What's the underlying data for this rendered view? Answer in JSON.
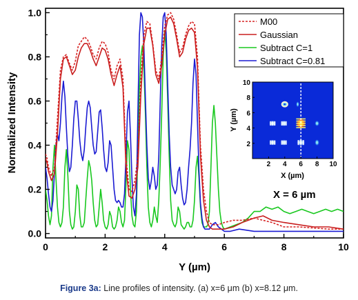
{
  "chart_data": [
    {
      "type": "line",
      "title": "",
      "xlabel": "Y (µm)",
      "ylabel": "Normalized Intensity",
      "xlim": [
        0,
        10
      ],
      "ylim": [
        -0.02,
        1.02
      ],
      "xticks": [
        "0",
        "2",
        "4",
        "6",
        "8",
        "10"
      ],
      "yticks": [
        "0.0",
        "0.2",
        "0.4",
        "0.6",
        "0.8",
        "1.0"
      ],
      "grid": false,
      "legend_position": "top-right",
      "annotation": "X = 6 µm",
      "series": [
        {
          "name": "M00",
          "color": "#d62020",
          "dash": "dashed",
          "x": [
            0,
            0.05,
            0.1,
            0.2,
            0.3,
            0.4,
            0.5,
            0.6,
            0.7,
            0.8,
            0.9,
            1.0,
            1.1,
            1.2,
            1.3,
            1.4,
            1.5,
            1.6,
            1.7,
            1.8,
            1.9,
            2.0,
            2.1,
            2.2,
            2.3,
            2.4,
            2.5,
            2.6,
            2.7,
            2.8,
            2.9,
            3.0,
            3.1,
            3.2,
            3.3,
            3.4,
            3.5,
            3.6,
            3.7,
            3.8,
            3.9,
            4.0,
            4.1,
            4.2,
            4.3,
            4.4,
            4.5,
            4.6,
            4.7,
            4.8,
            4.9,
            5.0,
            5.1,
            5.2,
            5.3,
            5.4,
            5.5,
            5.6,
            5.7,
            5.8,
            6.0,
            6.3,
            6.6,
            7.0,
            7.3,
            7.6,
            8.0,
            8.5,
            9.0,
            9.5,
            10.0
          ],
          "y": [
            0.36,
            0.34,
            0.3,
            0.26,
            0.3,
            0.52,
            0.74,
            0.8,
            0.81,
            0.77,
            0.74,
            0.78,
            0.85,
            0.87,
            0.89,
            0.88,
            0.85,
            0.81,
            0.79,
            0.84,
            0.87,
            0.86,
            0.82,
            0.74,
            0.7,
            0.76,
            0.79,
            0.7,
            0.35,
            0.2,
            0.19,
            0.24,
            0.35,
            0.7,
            0.9,
            0.96,
            0.95,
            0.86,
            0.74,
            0.7,
            0.8,
            0.94,
            0.99,
            1.0,
            0.97,
            0.9,
            0.82,
            0.84,
            0.9,
            0.94,
            0.96,
            0.95,
            0.8,
            0.4,
            0.2,
            0.1,
            0.05,
            0.04,
            0.04,
            0.04,
            0.05,
            0.06,
            0.06,
            0.07,
            0.06,
            0.05,
            0.03,
            0.03,
            0.025,
            0.02,
            0.02
          ]
        },
        {
          "name": "Gaussian",
          "color": "#c81e1e",
          "dash": "solid",
          "x": [
            0,
            0.05,
            0.1,
            0.2,
            0.3,
            0.4,
            0.5,
            0.6,
            0.7,
            0.8,
            0.9,
            1.0,
            1.1,
            1.2,
            1.3,
            1.4,
            1.5,
            1.6,
            1.7,
            1.8,
            1.9,
            2.0,
            2.1,
            2.2,
            2.3,
            2.4,
            2.5,
            2.6,
            2.7,
            2.8,
            2.9,
            3.0,
            3.1,
            3.2,
            3.3,
            3.4,
            3.5,
            3.6,
            3.7,
            3.8,
            3.9,
            4.0,
            4.1,
            4.2,
            4.3,
            4.4,
            4.5,
            4.6,
            4.7,
            4.8,
            4.9,
            5.0,
            5.1,
            5.2,
            5.3,
            5.4,
            5.5,
            5.6,
            5.7,
            6.0,
            6.3,
            6.6,
            7.0,
            7.3,
            7.6,
            8.0,
            8.5,
            9.0,
            9.5,
            10.0
          ],
          "y": [
            0.34,
            0.32,
            0.28,
            0.24,
            0.27,
            0.45,
            0.7,
            0.79,
            0.8,
            0.76,
            0.72,
            0.74,
            0.8,
            0.84,
            0.86,
            0.86,
            0.83,
            0.79,
            0.76,
            0.8,
            0.84,
            0.83,
            0.79,
            0.72,
            0.67,
            0.72,
            0.76,
            0.66,
            0.3,
            0.17,
            0.16,
            0.2,
            0.3,
            0.63,
            0.86,
            0.93,
            0.93,
            0.85,
            0.72,
            0.68,
            0.76,
            0.9,
            0.97,
            0.98,
            0.95,
            0.88,
            0.8,
            0.82,
            0.88,
            0.92,
            0.93,
            0.91,
            0.75,
            0.35,
            0.15,
            0.06,
            0.03,
            0.02,
            0.02,
            0.02,
            0.03,
            0.05,
            0.07,
            0.08,
            0.06,
            0.05,
            0.04,
            0.03,
            0.03,
            0.02
          ]
        },
        {
          "name": "Subtract C=1",
          "color": "#18c81e",
          "dash": "solid",
          "x": [
            0,
            0.05,
            0.1,
            0.15,
            0.2,
            0.25,
            0.3,
            0.35,
            0.4,
            0.45,
            0.5,
            0.55,
            0.6,
            0.65,
            0.7,
            0.75,
            0.8,
            0.85,
            0.9,
            0.95,
            1.0,
            1.05,
            1.1,
            1.15,
            1.2,
            1.25,
            1.3,
            1.35,
            1.4,
            1.45,
            1.5,
            1.55,
            1.6,
            1.65,
            1.7,
            1.75,
            1.8,
            1.85,
            1.9,
            1.95,
            2.0,
            2.05,
            2.1,
            2.15,
            2.2,
            2.25,
            2.3,
            2.35,
            2.4,
            2.45,
            2.5,
            2.55,
            2.6,
            2.65,
            2.7,
            2.75,
            2.8,
            2.85,
            2.9,
            2.95,
            3.0,
            3.05,
            3.1,
            3.15,
            3.2,
            3.25,
            3.3,
            3.35,
            3.4,
            3.45,
            3.5,
            3.55,
            3.6,
            3.65,
            3.7,
            3.75,
            3.8,
            3.85,
            3.9,
            3.95,
            4.0,
            4.05,
            4.1,
            4.15,
            4.2,
            4.25,
            4.3,
            4.35,
            4.4,
            4.45,
            4.5,
            4.55,
            4.6,
            4.65,
            4.7,
            4.75,
            4.8,
            4.85,
            4.9,
            4.95,
            5.0,
            5.05,
            5.1,
            5.15,
            5.2,
            5.25,
            5.3,
            5.35,
            5.4,
            5.45,
            5.5,
            5.55,
            5.6,
            5.65,
            5.7,
            5.75,
            5.8,
            5.85,
            5.9,
            5.95,
            6.0,
            6.2,
            6.4,
            6.6,
            6.8,
            7.0,
            7.2,
            7.4,
            7.6,
            7.8,
            8.0,
            8.2,
            8.4,
            8.6,
            8.8,
            9.0,
            9.2,
            9.4,
            9.6,
            9.8,
            10.0
          ],
          "y": [
            0.2,
            0.15,
            0.08,
            0.04,
            0.08,
            0.3,
            0.4,
            0.25,
            0.12,
            0.05,
            0.03,
            0.05,
            0.12,
            0.3,
            0.38,
            0.26,
            0.1,
            0.04,
            0.02,
            0.03,
            0.1,
            0.22,
            0.2,
            0.08,
            0.03,
            0.03,
            0.05,
            0.15,
            0.25,
            0.33,
            0.3,
            0.24,
            0.14,
            0.06,
            0.03,
            0.04,
            0.12,
            0.2,
            0.14,
            0.06,
            0.03,
            0.02,
            0.04,
            0.1,
            0.08,
            0.03,
            0.02,
            0.03,
            0.06,
            0.12,
            0.1,
            0.05,
            0.03,
            0.06,
            0.22,
            0.42,
            0.38,
            0.2,
            0.08,
            0.04,
            0.03,
            0.1,
            0.4,
            0.65,
            0.8,
            0.85,
            0.75,
            0.55,
            0.3,
            0.12,
            0.05,
            0.03,
            0.06,
            0.12,
            0.08,
            0.05,
            0.15,
            0.32,
            0.55,
            0.8,
            0.92,
            0.82,
            0.6,
            0.35,
            0.15,
            0.06,
            0.04,
            0.03,
            0.05,
            0.12,
            0.1,
            0.04,
            0.03,
            0.02,
            0.03,
            0.05,
            0.05,
            0.03,
            0.03,
            0.06,
            0.15,
            0.3,
            0.35,
            0.25,
            0.12,
            0.05,
            0.03,
            0.03,
            0.03,
            0.04,
            0.1,
            0.3,
            0.5,
            0.58,
            0.5,
            0.35,
            0.2,
            0.1,
            0.05,
            0.03,
            0.02,
            0.03,
            0.04,
            0.05,
            0.07,
            0.1,
            0.1,
            0.12,
            0.11,
            0.12,
            0.1,
            0.09,
            0.1,
            0.11,
            0.1,
            0.09,
            0.1,
            0.11,
            0.1,
            0.11,
            0.1
          ]
        },
        {
          "name": "Subtract C=0.81",
          "color": "#1a1ad2",
          "dash": "solid",
          "x": [
            0,
            0.05,
            0.1,
            0.15,
            0.2,
            0.25,
            0.3,
            0.35,
            0.4,
            0.45,
            0.5,
            0.55,
            0.6,
            0.65,
            0.7,
            0.75,
            0.8,
            0.85,
            0.9,
            0.95,
            1.0,
            1.05,
            1.1,
            1.15,
            1.2,
            1.25,
            1.3,
            1.35,
            1.4,
            1.45,
            1.5,
            1.55,
            1.6,
            1.65,
            1.7,
            1.75,
            1.8,
            1.85,
            1.9,
            1.95,
            2.0,
            2.05,
            2.1,
            2.15,
            2.2,
            2.25,
            2.3,
            2.35,
            2.4,
            2.45,
            2.5,
            2.55,
            2.6,
            2.65,
            2.7,
            2.75,
            2.8,
            2.85,
            2.9,
            2.95,
            3.0,
            3.05,
            3.1,
            3.15,
            3.2,
            3.25,
            3.3,
            3.35,
            3.4,
            3.45,
            3.5,
            3.55,
            3.6,
            3.65,
            3.7,
            3.75,
            3.8,
            3.85,
            3.9,
            3.95,
            4.0,
            4.05,
            4.1,
            4.15,
            4.2,
            4.25,
            4.3,
            4.35,
            4.4,
            4.45,
            4.5,
            4.55,
            4.6,
            4.65,
            4.7,
            4.75,
            4.8,
            4.85,
            4.9,
            4.95,
            5.0,
            5.05,
            5.1,
            5.15,
            5.2,
            5.25,
            5.3,
            5.35,
            5.4,
            5.5,
            5.6,
            5.7,
            5.8,
            6.0,
            6.2,
            6.5,
            7.0,
            7.5,
            8.0,
            8.5,
            9.0,
            9.5,
            10.0
          ],
          "y": [
            0.3,
            0.25,
            0.18,
            0.12,
            0.1,
            0.15,
            0.28,
            0.4,
            0.45,
            0.42,
            0.5,
            0.62,
            0.69,
            0.62,
            0.48,
            0.35,
            0.28,
            0.3,
            0.4,
            0.52,
            0.6,
            0.6,
            0.52,
            0.42,
            0.36,
            0.33,
            0.38,
            0.48,
            0.57,
            0.6,
            0.57,
            0.48,
            0.4,
            0.36,
            0.37,
            0.46,
            0.55,
            0.56,
            0.48,
            0.38,
            0.3,
            0.28,
            0.32,
            0.42,
            0.4,
            0.3,
            0.2,
            0.15,
            0.14,
            0.15,
            0.14,
            0.12,
            0.12,
            0.18,
            0.35,
            0.55,
            0.6,
            0.45,
            0.25,
            0.12,
            0.08,
            0.18,
            0.55,
            0.9,
            1.0,
            0.98,
            0.85,
            0.62,
            0.4,
            0.25,
            0.2,
            0.24,
            0.3,
            0.26,
            0.2,
            0.22,
            0.35,
            0.6,
            0.85,
            0.98,
            1.0,
            0.9,
            0.68,
            0.45,
            0.3,
            0.22,
            0.2,
            0.18,
            0.2,
            0.28,
            0.3,
            0.22,
            0.16,
            0.13,
            0.14,
            0.2,
            0.3,
            0.38,
            0.5,
            0.68,
            0.79,
            0.72,
            0.5,
            0.28,
            0.14,
            0.07,
            0.03,
            0.02,
            0.02,
            0.02,
            0.04,
            0.05,
            0.03,
            0.01,
            0.01,
            0.02,
            0.01,
            0.01,
            0.01,
            0.01,
            0.01,
            0.01,
            0.01
          ]
        }
      ]
    },
    {
      "type": "heatmap",
      "title": "",
      "xlabel": "X (µm)",
      "ylabel": "Y (µm)",
      "xlim": [
        0,
        10
      ],
      "ylim": [
        0,
        10
      ],
      "xticks": [
        "2",
        "4",
        "6",
        "8",
        "10"
      ],
      "yticks": [
        "2",
        "4",
        "6",
        "8",
        "10"
      ],
      "background_color": "#0a2ad8",
      "marker_line_x": 6,
      "spots": [
        {
          "x": 4.0,
          "y": 7.1,
          "w": 1.0,
          "h": 0.9,
          "kind": "ring"
        },
        {
          "x": 5.6,
          "y": 7.1,
          "w": 0.4,
          "h": 0.8,
          "kind": "dim"
        },
        {
          "x": 2.5,
          "y": 4.6,
          "w": 0.9,
          "h": 0.8,
          "kind": "bars"
        },
        {
          "x": 3.9,
          "y": 4.6,
          "w": 0.9,
          "h": 0.8,
          "kind": "bars"
        },
        {
          "x": 6.0,
          "y": 4.6,
          "w": 1.3,
          "h": 1.5,
          "kind": "stripes"
        },
        {
          "x": 8.0,
          "y": 4.6,
          "w": 0.6,
          "h": 0.8,
          "kind": "dim"
        },
        {
          "x": 2.5,
          "y": 2.1,
          "w": 0.9,
          "h": 0.8,
          "kind": "bars"
        },
        {
          "x": 3.9,
          "y": 2.1,
          "w": 0.9,
          "h": 0.8,
          "kind": "bars"
        },
        {
          "x": 6.0,
          "y": 2.1,
          "w": 1.1,
          "h": 0.9,
          "kind": "bars"
        },
        {
          "x": 8.0,
          "y": 2.1,
          "w": 0.6,
          "h": 0.9,
          "kind": "dim"
        }
      ]
    }
  ],
  "caption": {
    "label": "Figure 3a:",
    "text": " Line profiles of intensity. (a) x=6 μm (b) x=8.12 μm."
  }
}
